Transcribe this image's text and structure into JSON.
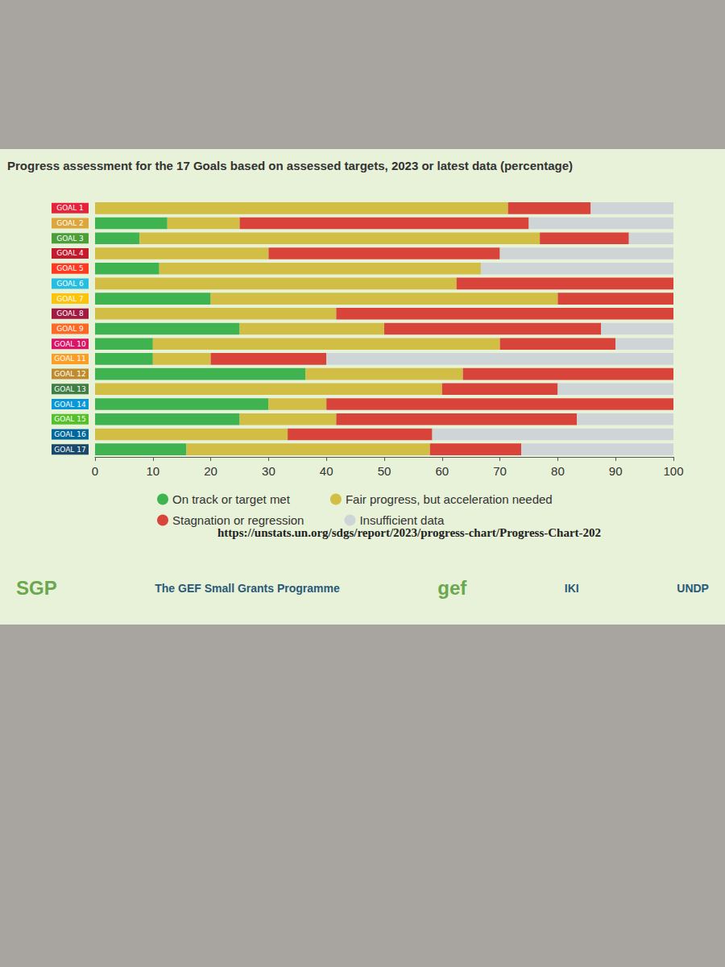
{
  "chart_data": {
    "type": "bar",
    "orientation": "horizontal",
    "stacked": true,
    "title": "Progress assessment for the 17 Goals based on assessed targets, 2023 or latest data (percentage)",
    "categories": [
      "GOAL 1",
      "GOAL 2",
      "GOAL 3",
      "GOAL 4",
      "GOAL 5",
      "GOAL 6",
      "GOAL 7",
      "GOAL 8",
      "GOAL 9",
      "GOAL 10",
      "GOAL 11",
      "GOAL 12",
      "GOAL 13",
      "GOAL 14",
      "GOAL 15",
      "GOAL 16",
      "GOAL 17"
    ],
    "series": [
      {
        "name": "On track or target met",
        "color": "#3fb34f",
        "values": [
          0,
          12.5,
          7.7,
          0,
          11.1,
          0,
          20,
          0,
          25,
          10,
          10,
          36.4,
          0,
          30,
          25,
          0,
          15.8
        ]
      },
      {
        "name": "Fair progress, but acceleration needed",
        "color": "#d2bd45",
        "values": [
          71.4,
          12.5,
          69.2,
          30,
          55.6,
          62.5,
          60,
          41.7,
          25,
          60,
          10,
          27.2,
          60,
          10,
          16.7,
          33.3,
          42.1
        ]
      },
      {
        "name": "Stagnation or regression",
        "color": "#d8443a",
        "values": [
          14.3,
          50,
          15.4,
          40,
          0,
          37.5,
          20,
          58.3,
          37.5,
          20,
          20,
          36.4,
          20,
          60,
          41.6,
          25,
          15.8
        ]
      },
      {
        "name": "Insufficient data",
        "color": "#cdd5d6",
        "values": [
          14.3,
          25,
          7.7,
          30,
          33.3,
          0,
          0,
          0,
          12.5,
          10,
          60,
          0,
          20,
          0,
          16.7,
          41.7,
          26.3
        ]
      }
    ],
    "xlim": [
      0,
      100
    ],
    "xticks": [
      0,
      10,
      20,
      30,
      40,
      50,
      60,
      70,
      80,
      90,
      100
    ],
    "grid": false,
    "legend": "bottom",
    "annotations": [
      "https://unstats.un.org/sdgs/report/2023/progress-chart/Progress-Chart-202",
      "SGP",
      "The GEF Small Grants Programme",
      "gef",
      "IKI",
      "UNDP"
    ]
  }
}
